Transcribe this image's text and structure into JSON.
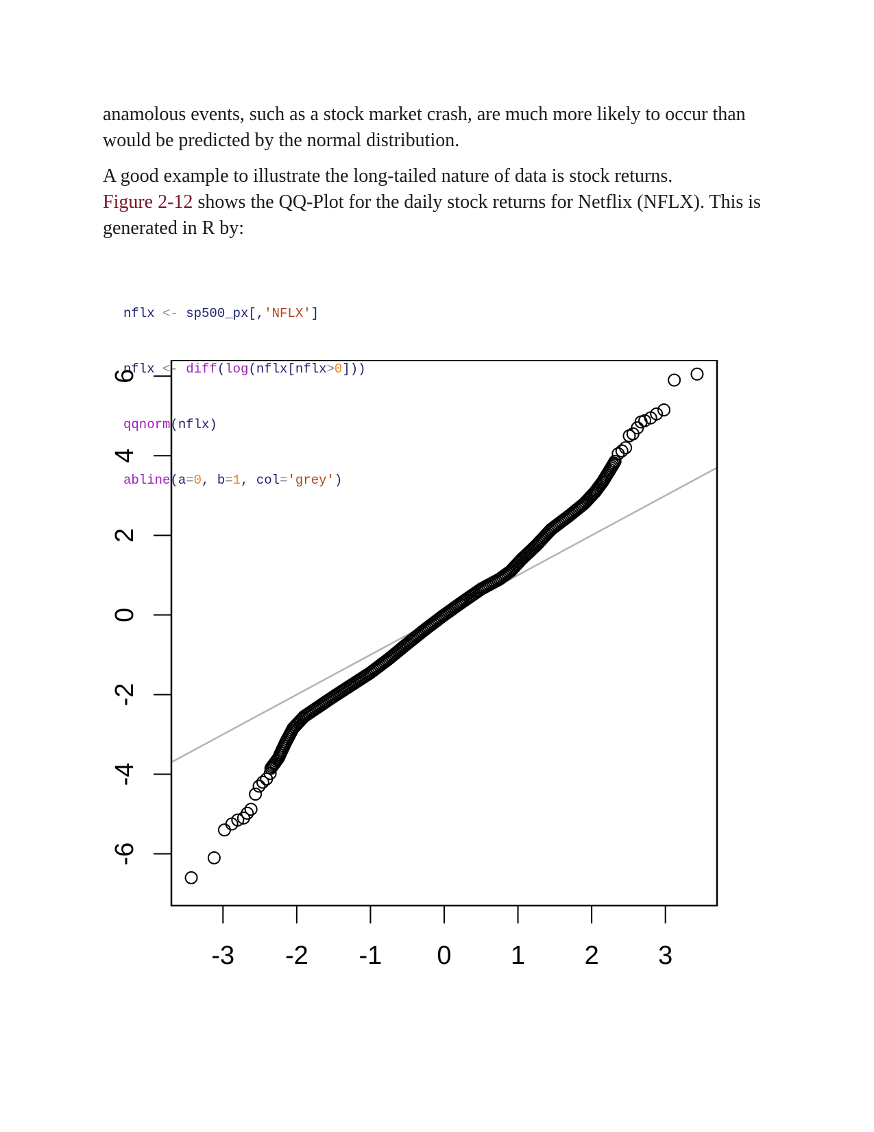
{
  "paragraphs": {
    "p1": "anamolous events, such as a stock market crash, are much more likely to occur than would be predicted by the normal distribution.",
    "p2_before": "A good example to illustrate the long-tailed nature of data is stock returns.",
    "p2_link": "Figure 2-12",
    "p2_after": " shows the QQ-Plot for the daily stock returns for Netflix (NFLX). This is generated in R by:"
  },
  "code": {
    "line1": [
      {
        "t": "nflx",
        "k": "id"
      },
      {
        "t": " <- ",
        "k": "op"
      },
      {
        "t": "sp500_px[,",
        "k": "id"
      },
      {
        "t": "'NFLX'",
        "k": "str"
      },
      {
        "t": "]",
        "k": "id"
      }
    ],
    "line2": [
      {
        "t": "nflx",
        "k": "id"
      },
      {
        "t": " <- ",
        "k": "op"
      },
      {
        "t": "diff",
        "k": "fn"
      },
      {
        "t": "(",
        "k": "id"
      },
      {
        "t": "log",
        "k": "fn"
      },
      {
        "t": "(nflx[nflx",
        "k": "id"
      },
      {
        "t": ">",
        "k": "op"
      },
      {
        "t": "0",
        "k": "num"
      },
      {
        "t": "]))",
        "k": "id"
      }
    ],
    "line3": [
      {
        "t": "qqnorm",
        "k": "fn"
      },
      {
        "t": "(nflx)",
        "k": "id"
      }
    ],
    "line4": [
      {
        "t": "abline",
        "k": "fn"
      },
      {
        "t": "(a",
        "k": "id"
      },
      {
        "t": "=",
        "k": "op"
      },
      {
        "t": "0",
        "k": "num"
      },
      {
        "t": ", b",
        "k": "id"
      },
      {
        "t": "=",
        "k": "op"
      },
      {
        "t": "1",
        "k": "num"
      },
      {
        "t": ", col",
        "k": "id"
      },
      {
        "t": "=",
        "k": "op"
      },
      {
        "t": "'grey'",
        "k": "str"
      },
      {
        "t": ")",
        "k": "id"
      }
    ]
  },
  "colors": {
    "link": "#7a1426",
    "reference_line": "#b3b3b3",
    "points": "#000000"
  },
  "chart_data": {
    "type": "scatter",
    "title": "",
    "xlabel": "",
    "ylabel": "",
    "xlim": [
      -3.7,
      3.7
    ],
    "ylim": [
      -7.3,
      6.4
    ],
    "x_ticks": [
      "-3",
      "-2",
      "-1",
      "0",
      "1",
      "2",
      "3"
    ],
    "y_ticks": [
      "-6",
      "-4",
      "-2",
      "0",
      "2",
      "4",
      "6"
    ],
    "reference_line": {
      "a": 0,
      "b": 1,
      "color": "grey"
    },
    "tail_points": [
      {
        "x": -3.43,
        "y": -6.6
      },
      {
        "x": -3.12,
        "y": -6.1
      },
      {
        "x": -2.98,
        "y": -5.4
      },
      {
        "x": -2.88,
        "y": -5.25
      },
      {
        "x": -2.8,
        "y": -5.15
      },
      {
        "x": -2.72,
        "y": -5.1
      },
      {
        "x": -2.67,
        "y": -4.98
      },
      {
        "x": -2.62,
        "y": -4.88
      },
      {
        "x": -2.56,
        "y": -4.5
      },
      {
        "x": -2.51,
        "y": -4.3
      },
      {
        "x": -2.46,
        "y": -4.2
      },
      {
        "x": -2.41,
        "y": -4.12
      },
      {
        "x": -2.36,
        "y": -3.98
      },
      {
        "x": 2.36,
        "y": 4.05
      },
      {
        "x": 2.41,
        "y": 4.12
      },
      {
        "x": 2.46,
        "y": 4.2
      },
      {
        "x": 2.51,
        "y": 4.5
      },
      {
        "x": 2.56,
        "y": 4.55
      },
      {
        "x": 2.62,
        "y": 4.7
      },
      {
        "x": 2.67,
        "y": 4.85
      },
      {
        "x": 2.72,
        "y": 4.88
      },
      {
        "x": 2.8,
        "y": 4.95
      },
      {
        "x": 2.88,
        "y": 5.05
      },
      {
        "x": 2.98,
        "y": 5.15
      },
      {
        "x": 3.12,
        "y": 5.9
      },
      {
        "x": 3.43,
        "y": 6.05
      }
    ],
    "curve": [
      [
        -2.35,
        -3.85
      ],
      [
        -2.25,
        -3.6
      ],
      [
        -2.15,
        -3.2
      ],
      [
        -2.05,
        -2.85
      ],
      [
        -1.9,
        -2.55
      ],
      [
        -1.7,
        -2.3
      ],
      [
        -1.5,
        -2.05
      ],
      [
        -1.25,
        -1.75
      ],
      [
        -1.0,
        -1.45
      ],
      [
        -0.75,
        -1.1
      ],
      [
        -0.5,
        -0.72
      ],
      [
        -0.25,
        -0.35
      ],
      [
        0.0,
        0.0
      ],
      [
        0.25,
        0.33
      ],
      [
        0.5,
        0.65
      ],
      [
        0.75,
        0.9
      ],
      [
        0.9,
        1.1
      ],
      [
        1.05,
        1.4
      ],
      [
        1.25,
        1.75
      ],
      [
        1.45,
        2.15
      ],
      [
        1.7,
        2.5
      ],
      [
        1.9,
        2.8
      ],
      [
        2.05,
        3.1
      ],
      [
        2.15,
        3.35
      ],
      [
        2.25,
        3.65
      ],
      [
        2.33,
        3.9
      ]
    ]
  }
}
